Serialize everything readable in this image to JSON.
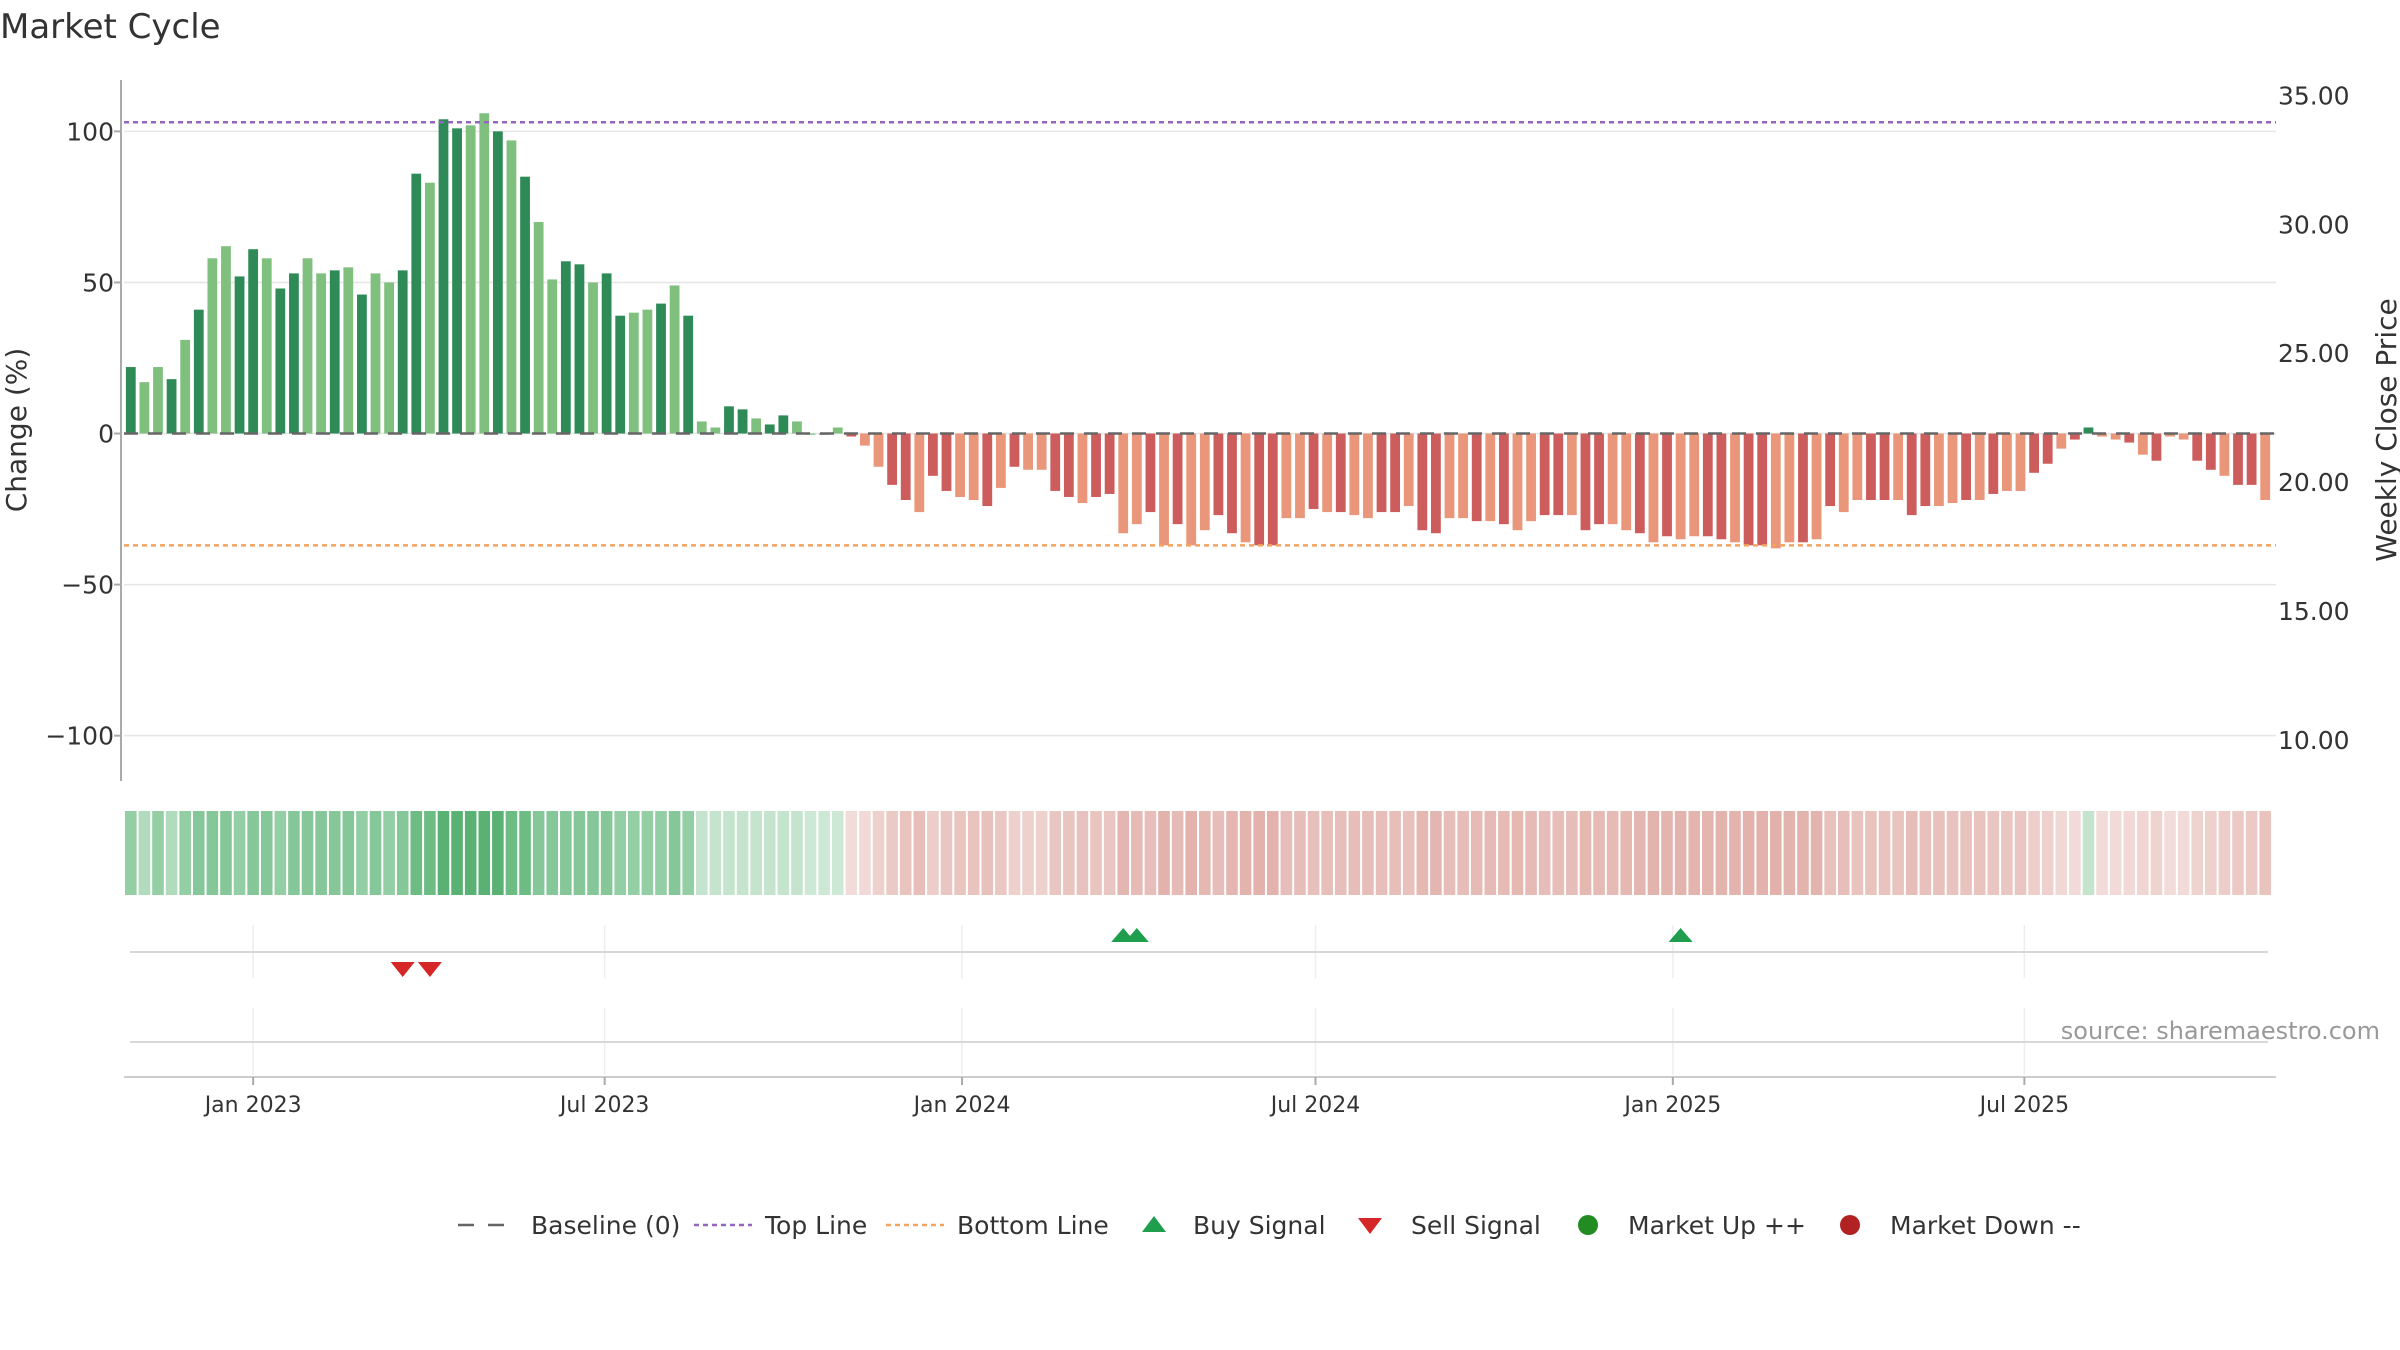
{
  "title": "Market Cycle",
  "source": "source: sharemaestro.com",
  "colors": {
    "green_dark": "#2e8b57",
    "green_light": "#7fc07f",
    "red_dark": "#cd5c5c",
    "red_light": "#e9967a",
    "top_line": "#9467bd",
    "bottom_line": "#f4a460",
    "baseline": "#666666",
    "buy": "#1f9e4d",
    "sell": "#d62728",
    "market_up": "#228b22",
    "market_down": "#b22222"
  },
  "legend": [
    {
      "label": "Baseline (0)",
      "icon": "dash-line-icon"
    },
    {
      "label": "Top Line",
      "icon": "dotted-line-icon"
    },
    {
      "label": "Bottom Line",
      "icon": "dotted-line-icon"
    },
    {
      "label": "Buy Signal",
      "icon": "triangle-up-icon"
    },
    {
      "label": "Sell Signal",
      "icon": "triangle-down-icon"
    },
    {
      "label": "Market Up ++",
      "icon": "circle-icon"
    },
    {
      "label": "Market Down --",
      "icon": "circle-icon"
    }
  ],
  "chart_data": {
    "type": "bar",
    "ylabel": "Change (%)",
    "y2label": "Weekly Close Price",
    "ylim": [
      -115,
      117
    ],
    "yticks": [
      100,
      50,
      0,
      -50,
      -100
    ],
    "ytick_labels": [
      "100",
      "50",
      "0",
      "−50",
      "−100"
    ],
    "y2lim": [
      8.4,
      35.6
    ],
    "y2ticks": [
      35,
      30,
      25,
      20,
      15,
      10
    ],
    "y2tick_labels": [
      "35.00",
      "30.00",
      "25.00",
      "20.00",
      "15.00",
      "10.00"
    ],
    "top_line": 103,
    "bottom_line": -37,
    "baseline": 0,
    "start_date": "2022-10-30",
    "x_ticks": [
      "2023-01-01",
      "2023-07-01",
      "2024-01-01",
      "2024-07-01",
      "2025-01-01",
      "2025-07-01"
    ],
    "x_tick_labels": [
      "Jan 2023",
      "Jul 2023",
      "Jan 2024",
      "Jul 2024",
      "Jan 2025",
      "Jul 2025"
    ],
    "week_values": [
      22,
      17,
      22,
      18,
      31,
      41,
      58,
      62,
      52,
      61,
      58,
      48,
      53,
      58,
      53,
      54,
      55,
      46,
      53,
      50,
      54,
      86,
      83,
      104,
      101,
      102,
      106,
      100,
      97,
      85,
      70,
      51,
      57,
      56,
      50,
      53,
      39,
      40,
      41,
      43,
      49,
      39,
      4,
      2,
      9,
      8,
      5,
      3,
      6,
      4,
      0,
      0,
      2,
      -1,
      -4,
      -11,
      -17,
      -22,
      -26,
      -14,
      -19,
      -21,
      -22,
      -24,
      -18,
      -11,
      -12,
      -12,
      -19,
      -21,
      -23,
      -21,
      -20,
      -33,
      -30,
      -26,
      -37,
      -30,
      -37,
      -32,
      -27,
      -33,
      -36,
      -37,
      -37,
      -28,
      -28,
      -25,
      -26,
      -26,
      -27,
      -28,
      -26,
      -26,
      -24,
      -32,
      -33,
      -28,
      -28,
      -29,
      -29,
      -30,
      -32,
      -29,
      -27,
      -27,
      -27,
      -32,
      -30,
      -30,
      -32,
      -33,
      -36,
      -34,
      -35,
      -34,
      -34,
      -35,
      -36,
      -37,
      -37,
      -38,
      -36,
      -36,
      -35,
      -24,
      -26,
      -22,
      -22,
      -22,
      -22,
      -27,
      -24,
      -24,
      -23,
      -22,
      -22,
      -20,
      -19,
      -19,
      -13,
      -10,
      -5,
      -2,
      2,
      -1,
      -2,
      -3,
      -7,
      -9,
      -1,
      -2,
      -9,
      -12,
      -14,
      -17,
      -17,
      -22
    ],
    "shade_bands": [
      0.55,
      0.4,
      0.55,
      0.4,
      0.55,
      0.62,
      0.62,
      0.62,
      0.55,
      0.62,
      0.62,
      0.55,
      0.62,
      0.62,
      0.62,
      0.62,
      0.62,
      0.55,
      0.62,
      0.55,
      0.62,
      0.75,
      0.75,
      0.85,
      0.85,
      0.85,
      0.85,
      0.85,
      0.75,
      0.75,
      0.62,
      0.62,
      0.62,
      0.62,
      0.62,
      0.62,
      0.55,
      0.55,
      0.55,
      0.55,
      0.62,
      0.55,
      0.3,
      0.3,
      0.3,
      0.3,
      0.3,
      0.3,
      0.3,
      0.3,
      0.25,
      0.25,
      0.25
    ],
    "buy_signals": [
      "2024-03-24",
      "2024-03-31",
      "2025-01-05"
    ],
    "sell_signals": [
      "2023-03-19",
      "2023-04-02"
    ]
  }
}
